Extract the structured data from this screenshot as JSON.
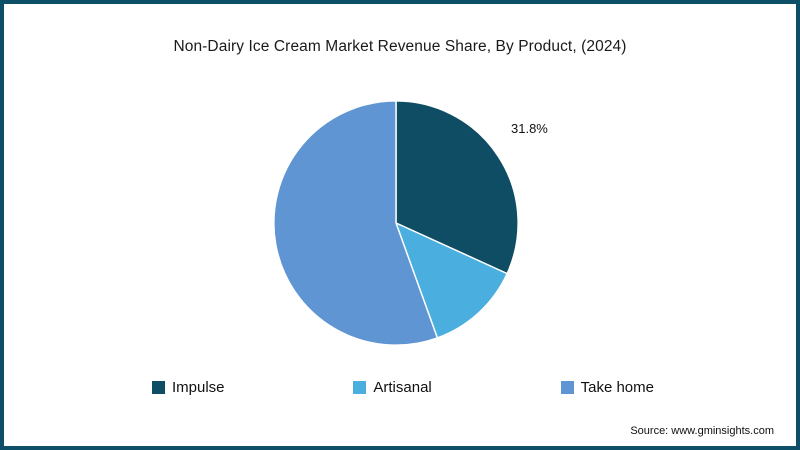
{
  "title": "Non-Dairy Ice Cream Market Revenue Share, By Product, (2024)",
  "source": "Source: www.gminsights.com",
  "frame": {
    "border_color": "#0d4f66",
    "background": "#ffffff"
  },
  "chart_data": {
    "type": "pie",
    "title": "Non-Dairy Ice Cream Market Revenue Share, By Product, (2024)",
    "start_angle_deg": 0,
    "direction": "clockwise",
    "legend_position": "bottom",
    "slices": [
      {
        "label": "Impulse",
        "value": 31.8,
        "color": "#0e4d63",
        "data_label": "31.8%"
      },
      {
        "label": "Artisanal",
        "value": 12.7,
        "color": "#4aaede",
        "data_label": ""
      },
      {
        "label": "Take home",
        "value": 55.5,
        "color": "#6095d3",
        "data_label": ""
      }
    ]
  }
}
